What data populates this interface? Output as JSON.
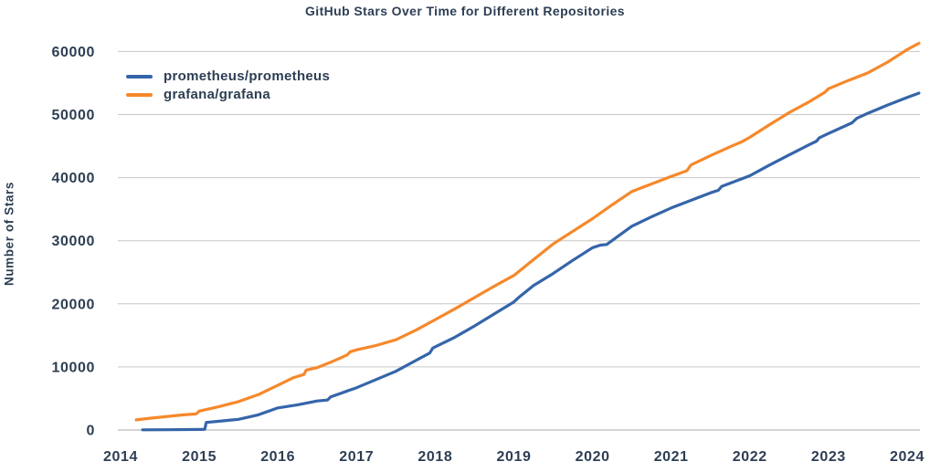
{
  "chart_data": {
    "type": "line",
    "title": "GitHub Stars Over Time for Different Repositories",
    "xlabel": "",
    "ylabel": "Number of Stars",
    "x_ticks": [
      2014,
      2015,
      2016,
      2017,
      2018,
      2019,
      2020,
      2021,
      2022,
      2023,
      2024
    ],
    "y_ticks": [
      0,
      10000,
      20000,
      30000,
      40000,
      50000,
      60000
    ],
    "xlim": [
      2013.96,
      2024.16
    ],
    "ylim": [
      0,
      62000
    ],
    "grid": "horizontal-only",
    "legend_position": "upper-left-inside",
    "text_color": "#2d3e53",
    "grid_color": "#c6c6c6",
    "axis_line_color": "#a9a9a9",
    "series": [
      {
        "name": "prometheus/prometheus",
        "color": "#3565a9",
        "points": [
          [
            2014.28,
            30
          ],
          [
            2014.6,
            50
          ],
          [
            2015.0,
            80
          ],
          [
            2015.07,
            100
          ],
          [
            2015.09,
            1200
          ],
          [
            2015.3,
            1450
          ],
          [
            2015.5,
            1700
          ],
          [
            2015.75,
            2400
          ],
          [
            2016.0,
            3500
          ],
          [
            2016.25,
            4000
          ],
          [
            2016.5,
            4600
          ],
          [
            2016.63,
            4750
          ],
          [
            2016.67,
            5250
          ],
          [
            2017.0,
            6700
          ],
          [
            2017.25,
            8000
          ],
          [
            2017.5,
            9300
          ],
          [
            2017.75,
            11000
          ],
          [
            2017.93,
            12200
          ],
          [
            2017.97,
            13000
          ],
          [
            2018.25,
            14700
          ],
          [
            2018.5,
            16500
          ],
          [
            2018.75,
            18400
          ],
          [
            2019.0,
            20300
          ],
          [
            2019.06,
            21000
          ],
          [
            2019.25,
            22900
          ],
          [
            2019.5,
            24800
          ],
          [
            2019.75,
            26900
          ],
          [
            2020.0,
            28900
          ],
          [
            2020.1,
            29300
          ],
          [
            2020.18,
            29400
          ],
          [
            2020.5,
            32300
          ],
          [
            2020.75,
            33800
          ],
          [
            2021.0,
            35200
          ],
          [
            2021.25,
            36400
          ],
          [
            2021.5,
            37600
          ],
          [
            2021.6,
            38000
          ],
          [
            2021.64,
            38600
          ],
          [
            2022.0,
            40300
          ],
          [
            2022.25,
            42000
          ],
          [
            2022.5,
            43600
          ],
          [
            2022.75,
            45200
          ],
          [
            2022.85,
            45800
          ],
          [
            2022.88,
            46300
          ],
          [
            2023.0,
            47000
          ],
          [
            2023.3,
            48700
          ],
          [
            2023.36,
            49400
          ],
          [
            2023.5,
            50200
          ],
          [
            2023.75,
            51500
          ],
          [
            2024.0,
            52700
          ],
          [
            2024.15,
            53400
          ]
        ]
      },
      {
        "name": "grafana/grafana",
        "color": "#f6882b",
        "points": [
          [
            2014.2,
            1600
          ],
          [
            2014.4,
            1900
          ],
          [
            2014.6,
            2150
          ],
          [
            2014.8,
            2400
          ],
          [
            2014.96,
            2550
          ],
          [
            2015.0,
            3000
          ],
          [
            2015.25,
            3700
          ],
          [
            2015.5,
            4500
          ],
          [
            2015.75,
            5600
          ],
          [
            2016.0,
            7100
          ],
          [
            2016.2,
            8300
          ],
          [
            2016.33,
            8800
          ],
          [
            2016.36,
            9500
          ],
          [
            2016.5,
            9900
          ],
          [
            2016.7,
            10900
          ],
          [
            2016.88,
            11900
          ],
          [
            2016.92,
            12400
          ],
          [
            2017.0,
            12700
          ],
          [
            2017.25,
            13400
          ],
          [
            2017.5,
            14300
          ],
          [
            2017.75,
            15800
          ],
          [
            2018.0,
            17500
          ],
          [
            2018.25,
            19200
          ],
          [
            2018.5,
            21000
          ],
          [
            2018.75,
            22800
          ],
          [
            2019.0,
            24500
          ],
          [
            2019.25,
            27000
          ],
          [
            2019.5,
            29500
          ],
          [
            2019.75,
            31500
          ],
          [
            2020.0,
            33500
          ],
          [
            2020.25,
            35700
          ],
          [
            2020.5,
            37800
          ],
          [
            2020.75,
            39000
          ],
          [
            2021.0,
            40200
          ],
          [
            2021.2,
            41100
          ],
          [
            2021.25,
            42000
          ],
          [
            2021.5,
            43500
          ],
          [
            2021.75,
            44900
          ],
          [
            2021.9,
            45700
          ],
          [
            2022.0,
            46400
          ],
          [
            2022.25,
            48400
          ],
          [
            2022.5,
            50300
          ],
          [
            2022.75,
            52000
          ],
          [
            2022.95,
            53500
          ],
          [
            2023.0,
            54100
          ],
          [
            2023.25,
            55400
          ],
          [
            2023.5,
            56600
          ],
          [
            2023.75,
            58300
          ],
          [
            2024.0,
            60300
          ],
          [
            2024.15,
            61300
          ]
        ]
      }
    ]
  }
}
